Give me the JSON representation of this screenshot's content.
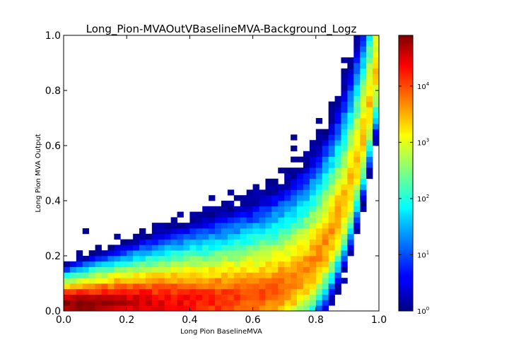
{
  "chart_data": {
    "type": "heatmap",
    "title": "Long_Pion-MVAOutVBaselineMVA-Background_Logz",
    "xlabel": "Long Pion BaselineMVA",
    "ylabel": "Long Pion MVA Output",
    "xlim": [
      0.0,
      1.0
    ],
    "ylim": [
      0.0,
      1.0
    ],
    "xticks": [
      "0.0",
      "0.2",
      "0.4",
      "0.6",
      "0.8",
      "1.0"
    ],
    "yticks": [
      "0.0",
      "0.2",
      "0.4",
      "0.6",
      "0.8",
      "1.0"
    ],
    "bins": {
      "x": 50,
      "y": 50
    },
    "colorbar": {
      "scale": "log",
      "colormap": "jet",
      "range": [
        1,
        80000
      ],
      "tick_labels": [
        "10^0",
        "10^1",
        "10^2",
        "10^3",
        "10^4"
      ],
      "tick_values": [
        1,
        10,
        100,
        1000,
        10000
      ]
    },
    "grid": false,
    "density_model": {
      "description": "Background pion counts concentrated along the lower-right band; peak near (0.0, 0.0), tail toward (1.0, 1.0).",
      "peak_count": 80000
    }
  }
}
